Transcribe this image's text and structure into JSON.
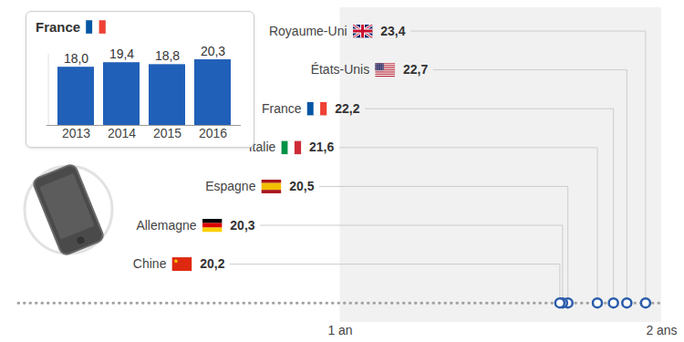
{
  "chart_data": [
    {
      "type": "dot",
      "categories": [
        "Royaume-Uni",
        "États-Unis",
        "France",
        "Italie",
        "Espagne",
        "Allemagne",
        "Chine"
      ],
      "values": [
        23.4,
        22.7,
        22.2,
        21.6,
        20.5,
        20.3,
        20.2
      ],
      "value_labels": [
        "23,4",
        "22,7",
        "22,2",
        "21,6",
        "20,5",
        "20,3",
        "20,2"
      ],
      "data_labels": true,
      "color": "#2a5caa",
      "xlim": [
        0,
        24
      ],
      "xticks": [
        {
          "value": 12,
          "label": "1 an"
        },
        {
          "value": 24,
          "label": "2 ans"
        }
      ]
    },
    {
      "type": "bar",
      "title": "France",
      "categories": [
        "2013",
        "2014",
        "2015",
        "2016"
      ],
      "values": [
        18.0,
        19.4,
        18.8,
        20.3
      ],
      "value_labels": [
        "18,0",
        "19,4",
        "18,8",
        "20,3"
      ],
      "data_labels": true,
      "color": "#2160b8",
      "ylim": [
        0,
        22
      ],
      "tick_labels": "x"
    }
  ]
}
